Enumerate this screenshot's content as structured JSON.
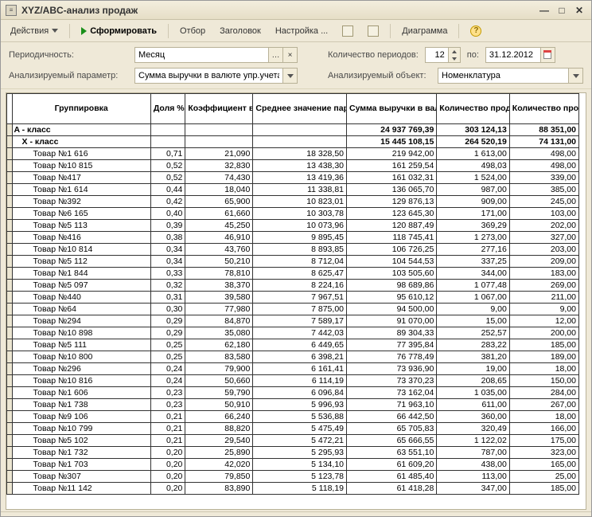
{
  "window": {
    "title": "XYZ/ABC-анализ продаж"
  },
  "toolbar": {
    "actions": "Действия",
    "form": "Сформировать",
    "filter": "Отбор",
    "header_btn": "Заголовок",
    "settings": "Настройка ...",
    "diagram": "Диаграмма"
  },
  "params": {
    "periodicity_label": "Периодичность:",
    "periodicity_value": "Месяц",
    "periods_label": "Количество периодов:",
    "periods_value": "12",
    "to_label": "по:",
    "to_date": "31.12.2012",
    "param_label": "Анализируемый параметр:",
    "param_value": "Сумма выручки в валюте упр.учета",
    "object_label": "Анализируемый объект:",
    "object_value": "Номенклатура"
  },
  "columns": {
    "group": "Группировка",
    "share": "Доля %",
    "var": "Коэффициент вариации",
    "avg": "Среднее значение параметра анализа",
    "sum": "Сумма выручки в валюте упр.учета (руб.)",
    "qty": "Количество проданных товаров",
    "sales": "Количество продаж"
  },
  "class_rows": [
    {
      "name": "A  - класс",
      "sum": "24 937 769,39",
      "qty": "303 124,13",
      "sales": "88 351,00"
    },
    {
      "name": "X  - класс",
      "sum": "15 445 108,15",
      "qty": "264 520,19",
      "sales": "74 131,00"
    }
  ],
  "rows": [
    {
      "name": "Товар №1 616",
      "share": "0,71",
      "var": "21,090",
      "avg": "18 328,50",
      "sum": "219 942,00",
      "qty": "1 613,00",
      "sales": "498,00"
    },
    {
      "name": "Товар №10 815",
      "share": "0,52",
      "var": "32,830",
      "avg": "13 438,30",
      "sum": "161 259,54",
      "qty": "498,03",
      "sales": "498,00"
    },
    {
      "name": "Товар №417",
      "share": "0,52",
      "var": "74,430",
      "avg": "13 419,36",
      "sum": "161 032,31",
      "qty": "1 524,00",
      "sales": "339,00"
    },
    {
      "name": "Товар №1 614",
      "share": "0,44",
      "var": "18,040",
      "avg": "11 338,81",
      "sum": "136 065,70",
      "qty": "987,00",
      "sales": "385,00"
    },
    {
      "name": "Товар №392",
      "share": "0,42",
      "var": "65,900",
      "avg": "10 823,01",
      "sum": "129 876,13",
      "qty": "909,00",
      "sales": "245,00"
    },
    {
      "name": "Товар №6 165",
      "share": "0,40",
      "var": "61,660",
      "avg": "10 303,78",
      "sum": "123 645,30",
      "qty": "171,00",
      "sales": "103,00"
    },
    {
      "name": "Товар №5 113",
      "share": "0,39",
      "var": "45,250",
      "avg": "10 073,96",
      "sum": "120 887,49",
      "qty": "369,29",
      "sales": "202,00"
    },
    {
      "name": "Товар №416",
      "share": "0,38",
      "var": "46,910",
      "avg": "9 895,45",
      "sum": "118 745,41",
      "qty": "1 273,00",
      "sales": "327,00"
    },
    {
      "name": "Товар №10 814",
      "share": "0,34",
      "var": "43,760",
      "avg": "8 893,85",
      "sum": "106 726,25",
      "qty": "277,16",
      "sales": "203,00"
    },
    {
      "name": "Товар №5 112",
      "share": "0,34",
      "var": "50,210",
      "avg": "8 712,04",
      "sum": "104 544,53",
      "qty": "337,25",
      "sales": "209,00"
    },
    {
      "name": "Товар №1 844",
      "share": "0,33",
      "var": "78,810",
      "avg": "8 625,47",
      "sum": "103 505,60",
      "qty": "344,00",
      "sales": "183,00"
    },
    {
      "name": "Товар №5 097",
      "share": "0,32",
      "var": "38,370",
      "avg": "8 224,16",
      "sum": "98 689,86",
      "qty": "1 077,48",
      "sales": "269,00"
    },
    {
      "name": "Товар №440",
      "share": "0,31",
      "var": "39,580",
      "avg": "7 967,51",
      "sum": "95 610,12",
      "qty": "1 067,00",
      "sales": "211,00"
    },
    {
      "name": "Товар №64",
      "share": "0,30",
      "var": "77,980",
      "avg": "7 875,00",
      "sum": "94 500,00",
      "qty": "9,00",
      "sales": "9,00"
    },
    {
      "name": "Товар №294",
      "share": "0,29",
      "var": "84,870",
      "avg": "7 589,17",
      "sum": "91 070,00",
      "qty": "15,00",
      "sales": "12,00"
    },
    {
      "name": "Товар №10 898",
      "share": "0,29",
      "var": "35,080",
      "avg": "7 442,03",
      "sum": "89 304,33",
      "qty": "252,57",
      "sales": "200,00"
    },
    {
      "name": "Товар №5 111",
      "share": "0,25",
      "var": "62,180",
      "avg": "6 449,65",
      "sum": "77 395,84",
      "qty": "283,22",
      "sales": "185,00"
    },
    {
      "name": "Товар №10 800",
      "share": "0,25",
      "var": "83,580",
      "avg": "6 398,21",
      "sum": "76 778,49",
      "qty": "381,20",
      "sales": "189,00"
    },
    {
      "name": "Товар №296",
      "share": "0,24",
      "var": "79,900",
      "avg": "6 161,41",
      "sum": "73 936,90",
      "qty": "19,00",
      "sales": "18,00"
    },
    {
      "name": "Товар №10 816",
      "share": "0,24",
      "var": "50,660",
      "avg": "6 114,19",
      "sum": "73 370,23",
      "qty": "208,65",
      "sales": "150,00"
    },
    {
      "name": "Товар №1 606",
      "share": "0,23",
      "var": "59,790",
      "avg": "6 096,84",
      "sum": "73 162,04",
      "qty": "1 035,00",
      "sales": "284,00"
    },
    {
      "name": "Товар №1 738",
      "share": "0,23",
      "var": "50,910",
      "avg": "5 996,93",
      "sum": "71 963,10",
      "qty": "611,00",
      "sales": "267,00"
    },
    {
      "name": "Товар №9 106",
      "share": "0,21",
      "var": "66,240",
      "avg": "5 536,88",
      "sum": "66 442,50",
      "qty": "360,00",
      "sales": "18,00"
    },
    {
      "name": "Товар №10 799",
      "share": "0,21",
      "var": "88,820",
      "avg": "5 475,49",
      "sum": "65 705,83",
      "qty": "320,49",
      "sales": "166,00"
    },
    {
      "name": "Товар №5 102",
      "share": "0,21",
      "var": "29,540",
      "avg": "5 472,21",
      "sum": "65 666,55",
      "qty": "1 122,02",
      "sales": "175,00"
    },
    {
      "name": "Товар №1 732",
      "share": "0,20",
      "var": "25,890",
      "avg": "5 295,93",
      "sum": "63 551,10",
      "qty": "787,00",
      "sales": "323,00"
    },
    {
      "name": "Товар №1 703",
      "share": "0,20",
      "var": "42,020",
      "avg": "5 134,10",
      "sum": "61 609,20",
      "qty": "438,00",
      "sales": "165,00"
    },
    {
      "name": "Товар №307",
      "share": "0,20",
      "var": "79,850",
      "avg": "5 123,78",
      "sum": "61 485,40",
      "qty": "113,00",
      "sales": "25,00"
    },
    {
      "name": "Товар №11 142",
      "share": "0,20",
      "var": "83,890",
      "avg": "5 118,19",
      "sum": "61 418,28",
      "qty": "347,00",
      "sales": "185,00"
    }
  ]
}
